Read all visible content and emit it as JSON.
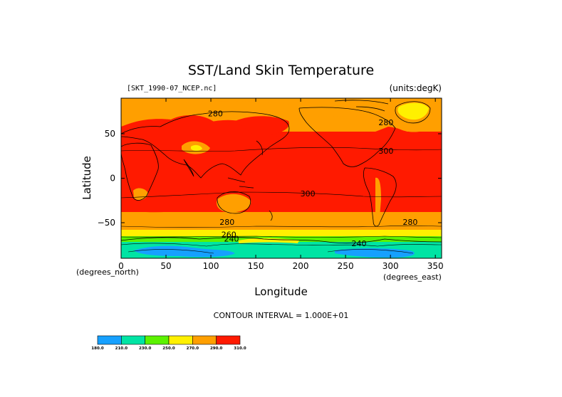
{
  "map": {
    "title": "SST/Land Skin Temperature",
    "source": "[SKT_1990-07_NCEP.nc]",
    "units": "(units:degK)",
    "xlabel": "Longitude",
    "ylabel": "Latitude",
    "x_unit_left": "(degrees_north)",
    "x_unit_right": "(degrees_east)",
    "contour_interval": "CONTOUR INTERVAL = 1.000E+01",
    "x_ticks": [
      "0",
      "50",
      "100",
      "150",
      "200",
      "250",
      "300",
      "350"
    ],
    "y_ticks": [
      "50",
      "0",
      "−50"
    ],
    "x_tick_values": [
      0,
      50,
      100,
      150,
      200,
      250,
      300,
      350
    ],
    "y_tick_values": [
      50,
      0,
      -50
    ],
    "xlim": [
      0,
      357
    ],
    "ylim": [
      -90,
      90
    ],
    "contour_labels": [
      {
        "text": "280",
        "lon": 105,
        "lat": 73
      },
      {
        "text": "280",
        "lon": 295,
        "lat": 63
      },
      {
        "text": "300",
        "lon": 295,
        "lat": 31
      },
      {
        "text": "300",
        "lon": 208,
        "lat": -17
      },
      {
        "text": "280",
        "lon": 118,
        "lat": -49
      },
      {
        "text": "280",
        "lon": 322,
        "lat": -49
      },
      {
        "text": "260",
        "lon": 120,
        "lat": -63
      },
      {
        "text": "240",
        "lon": 123,
        "lat": -68
      },
      {
        "text": "240",
        "lon": 265,
        "lat": -73
      }
    ],
    "colorbar": {
      "labels": [
        "180.0",
        "210.0",
        "230.0",
        "250.0",
        "270.0",
        "290.0",
        "310.0"
      ],
      "colors": [
        "#16a0ff",
        "#00e4a4",
        "#5cf200",
        "#fff000",
        "#ff9f00",
        "#ff1a00"
      ]
    },
    "colors": {
      "warm": "#ff1a00",
      "mild": "#ff9f00",
      "yellow": "#fff000",
      "green": "#5cf200",
      "cyan": "#00e4a4",
      "blue": "#16a0ff"
    }
  }
}
